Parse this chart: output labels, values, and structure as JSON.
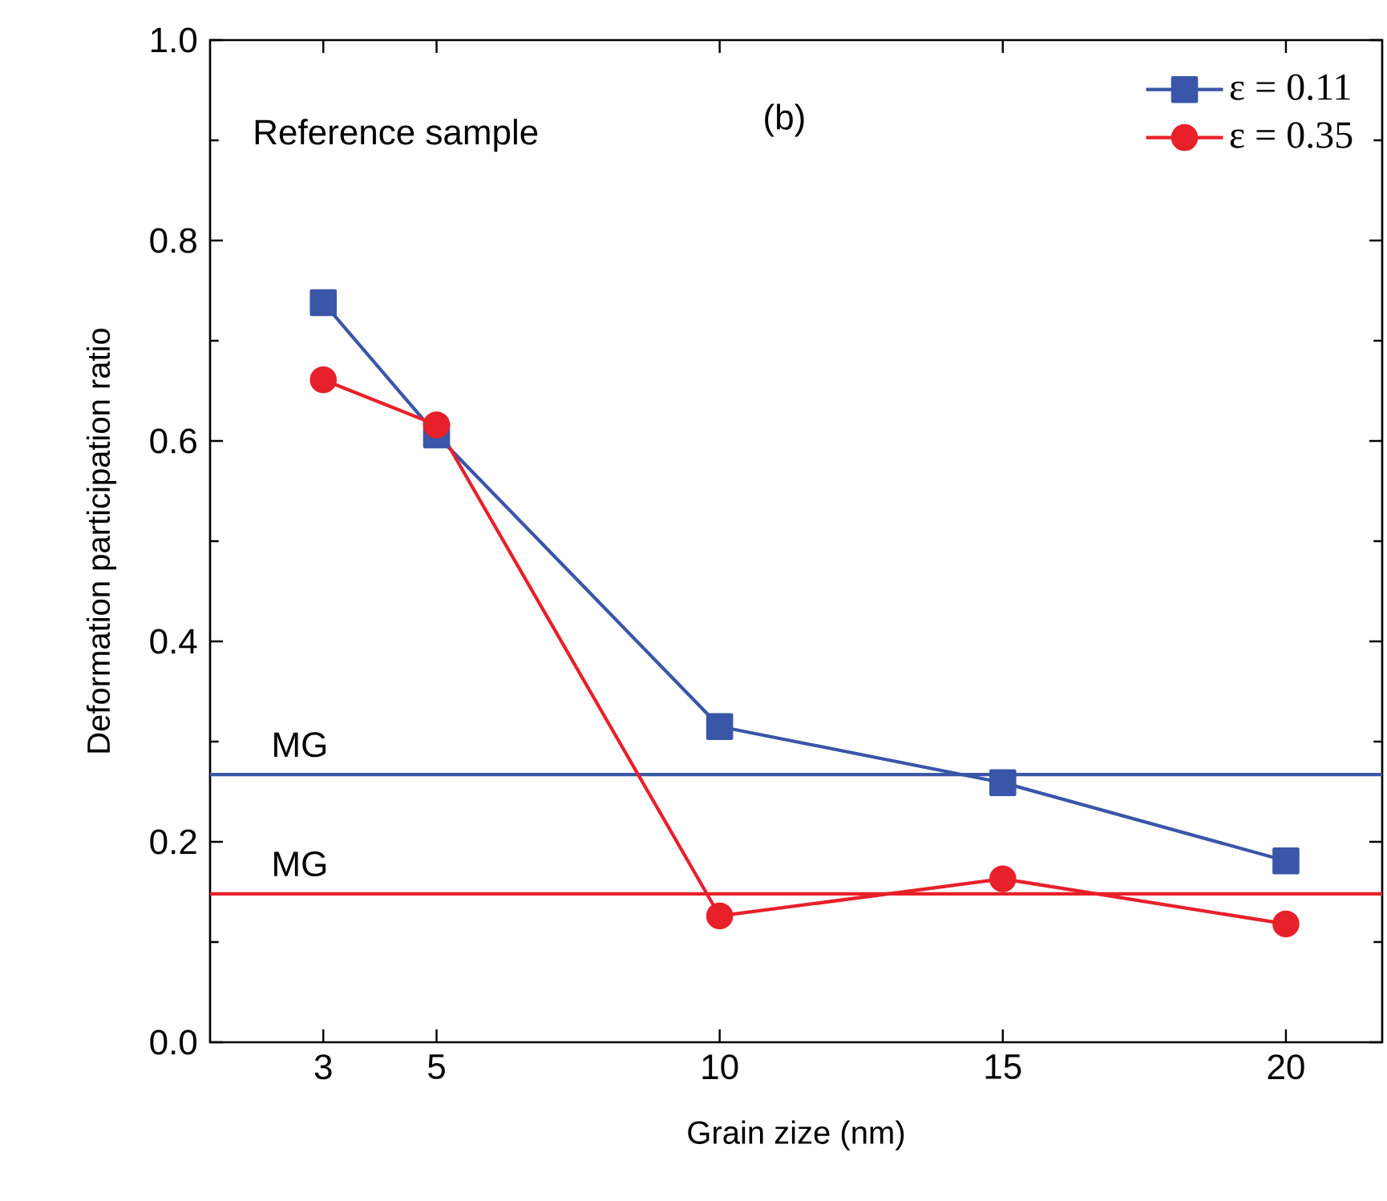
{
  "chart_data": {
    "type": "line",
    "xlabel": "Grain zize (nm)",
    "ylabel": "Deformation participation ratio",
    "x": [
      3,
      5,
      10,
      15,
      20
    ],
    "series": [
      {
        "name": "ε = 0.11",
        "color": "#3a56a8",
        "marker": "square",
        "values": [
          0.738,
          0.606,
          0.315,
          0.259,
          0.181
        ]
      },
      {
        "name": "ε = 0.35",
        "color": "#e8202a",
        "marker": "circle",
        "values": [
          0.661,
          0.616,
          0.126,
          0.163,
          0.118
        ]
      }
    ],
    "ref_lines": [
      {
        "axis": "y",
        "value": 0.267,
        "label": "MG",
        "color": "#3a56a8"
      },
      {
        "axis": "y",
        "value": 0.148,
        "label": "MG",
        "color": "#e8202a"
      }
    ],
    "annotations": [
      "Reference sample",
      "(b)"
    ],
    "xlim": [
      1,
      21.7
    ],
    "ylim": [
      0,
      1.0
    ],
    "xticks": [
      3,
      5,
      10,
      15,
      20
    ],
    "yticks": [
      {
        "value": 0,
        "label": "0.0"
      },
      {
        "value": 0.2,
        "label": "0.2"
      },
      {
        "value": 0.4,
        "label": "0.4"
      },
      {
        "value": 0.6,
        "label": "0.6"
      },
      {
        "value": 0.8,
        "label": "0.8"
      },
      {
        "value": 1.0,
        "label": "1.0"
      }
    ],
    "grid": false,
    "legend": "top right",
    "line_style": "solid"
  }
}
